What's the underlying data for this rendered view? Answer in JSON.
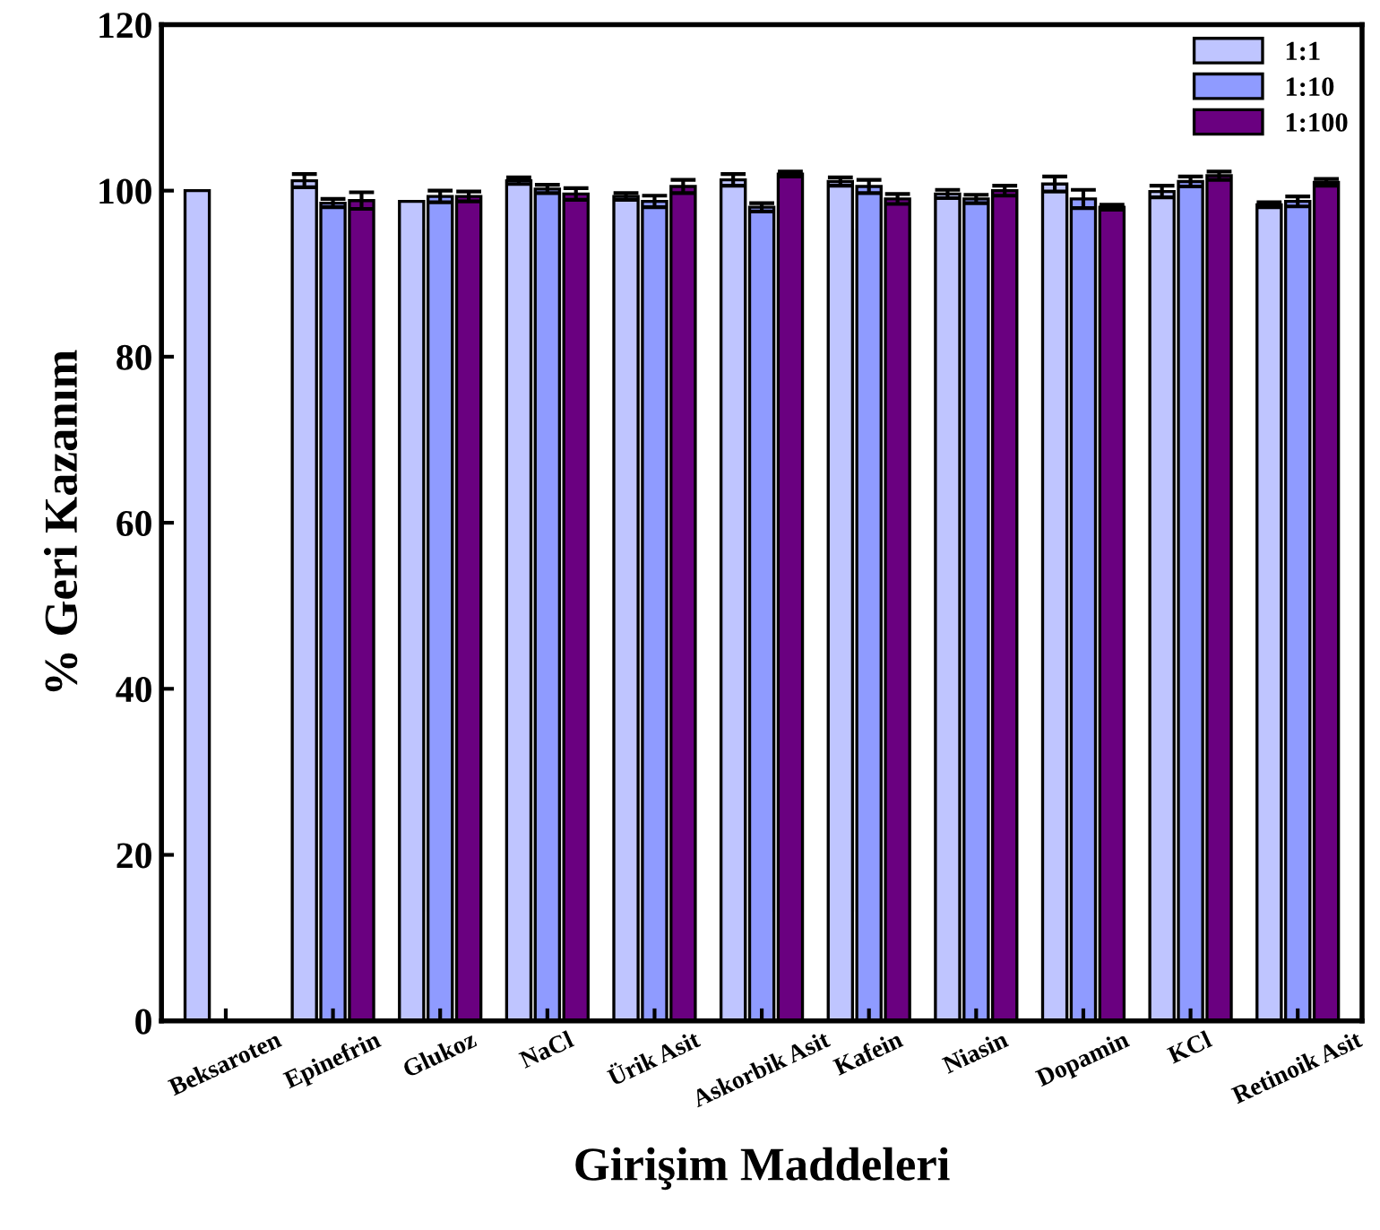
{
  "chart_data": {
    "type": "bar",
    "xlabel": "Girişim Maddeleri",
    "ylabel": "% Geri Kazanım",
    "categories": [
      "Beksaroten",
      "Epinefrin",
      "Glukoz",
      "NaCl",
      "Ürik Asit",
      "Askorbik Asit",
      "Kafein",
      "Niasin",
      "Dopamin",
      "KCl",
      "Retinoik Asit"
    ],
    "series": [
      {
        "name": "1:1",
        "color": "#bfc5ff",
        "values": [
          100,
          101.2,
          98.7,
          101.2,
          99.3,
          101.3,
          101.1,
          99.6,
          100.8,
          99.9,
          98.3
        ],
        "errors": [
          null,
          0.8,
          null,
          0.4,
          0.4,
          0.7,
          0.5,
          0.5,
          0.9,
          0.7,
          0.3
        ]
      },
      {
        "name": "1:10",
        "color": "#8f9bff",
        "values": [
          null,
          98.5,
          99.3,
          100.2,
          98.7,
          98.0,
          100.5,
          99.0,
          99.0,
          101.1,
          98.7
        ],
        "errors": [
          null,
          0.5,
          0.7,
          0.5,
          0.7,
          0.5,
          0.8,
          0.5,
          1.1,
          0.6,
          0.6
        ]
      },
      {
        "name": "1:100",
        "color": "#6a0080",
        "values": [
          null,
          98.8,
          99.3,
          99.6,
          100.5,
          102.0,
          99.0,
          100.0,
          98.0,
          101.8,
          101.0
        ],
        "errors": [
          null,
          1.0,
          0.6,
          0.7,
          0.8,
          0.3,
          0.6,
          0.6,
          0.3,
          0.5,
          0.4
        ]
      }
    ],
    "ylim": [
      0,
      120
    ],
    "yticks": [
      0,
      20,
      40,
      60,
      80,
      100,
      120
    ],
    "legend": "top right",
    "grid": false
  }
}
